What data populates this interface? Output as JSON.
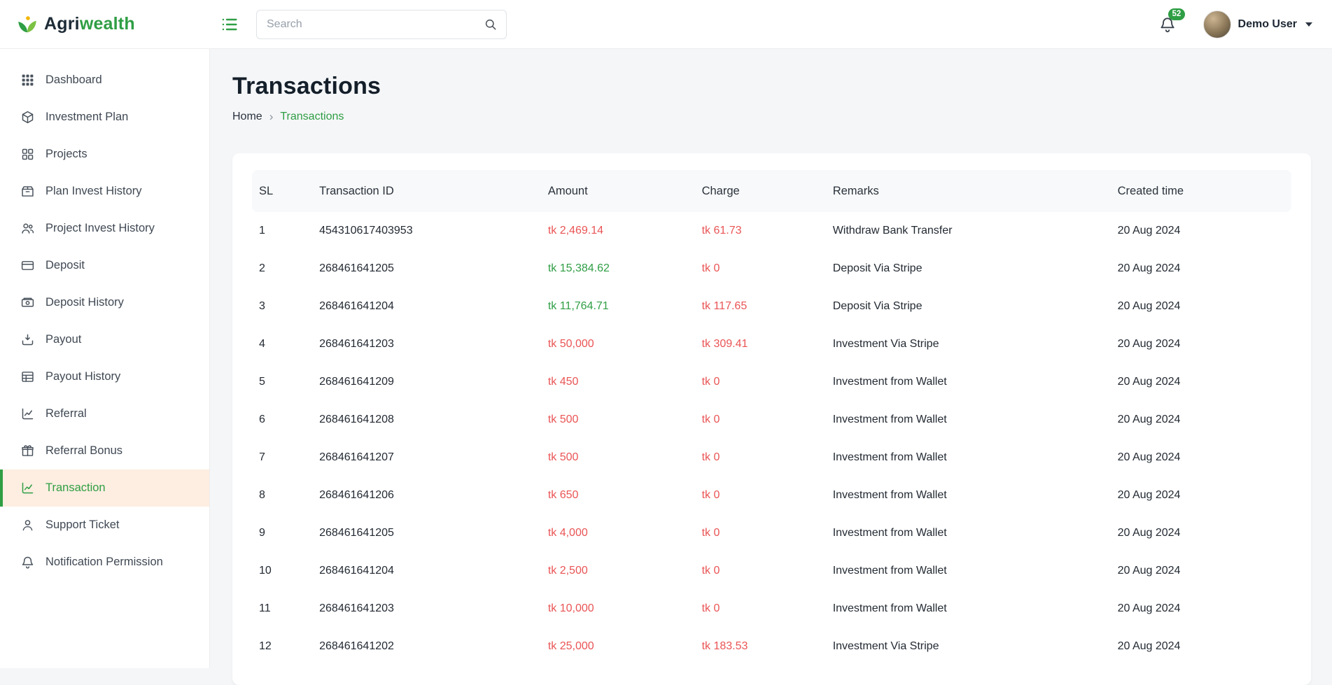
{
  "colors": {
    "accent_green": "#2f9e44",
    "negative_red": "#ea5455",
    "active_item_bg": "#fdeee1"
  },
  "header": {
    "brand": {
      "primary": "Agri",
      "secondary": "wealth"
    },
    "search_placeholder": "Search",
    "notification_count": "52",
    "user_name": "Demo User"
  },
  "sidebar": {
    "items": [
      {
        "label": "Dashboard",
        "icon": "dashboard-grid-icon",
        "active": false
      },
      {
        "label": "Investment Plan",
        "icon": "investment-plan-icon",
        "active": false
      },
      {
        "label": "Projects",
        "icon": "projects-icon",
        "active": false
      },
      {
        "label": "Plan Invest History",
        "icon": "plan-invest-history-icon",
        "active": false
      },
      {
        "label": "Project Invest History",
        "icon": "project-invest-history-icon",
        "active": false
      },
      {
        "label": "Deposit",
        "icon": "deposit-icon",
        "active": false
      },
      {
        "label": "Deposit History",
        "icon": "deposit-history-icon",
        "active": false
      },
      {
        "label": "Payout",
        "icon": "payout-icon",
        "active": false
      },
      {
        "label": "Payout History",
        "icon": "payout-history-icon",
        "active": false
      },
      {
        "label": "Referral",
        "icon": "referral-icon",
        "active": false
      },
      {
        "label": "Referral Bonus",
        "icon": "referral-bonus-icon",
        "active": false
      },
      {
        "label": "Transaction",
        "icon": "transaction-icon",
        "active": true
      },
      {
        "label": "Support Ticket",
        "icon": "support-ticket-icon",
        "active": false
      },
      {
        "label": "Notification Permission",
        "icon": "notification-permission-icon",
        "active": false
      }
    ]
  },
  "page": {
    "title": "Transactions",
    "breadcrumb": {
      "home": "Home",
      "separator": "›",
      "current": "Transactions"
    }
  },
  "table": {
    "columns": [
      "SL",
      "Transaction ID",
      "Amount",
      "Charge",
      "Remarks",
      "Created time"
    ],
    "rows": [
      {
        "sl": "1",
        "transaction_id": "454310617403953",
        "amount": "tk 2,469.14",
        "amount_color": "red",
        "charge": "tk 61.73",
        "charge_color": "red",
        "remarks": "Withdraw Bank Transfer",
        "created_time": "20 Aug 2024"
      },
      {
        "sl": "2",
        "transaction_id": "268461641205",
        "amount": "tk 15,384.62",
        "amount_color": "green",
        "charge": "tk 0",
        "charge_color": "red",
        "remarks": "Deposit Via Stripe",
        "created_time": "20 Aug 2024"
      },
      {
        "sl": "3",
        "transaction_id": "268461641204",
        "amount": "tk 11,764.71",
        "amount_color": "green",
        "charge": "tk 117.65",
        "charge_color": "red",
        "remarks": "Deposit Via Stripe",
        "created_time": "20 Aug 2024"
      },
      {
        "sl": "4",
        "transaction_id": "268461641203",
        "amount": "tk 50,000",
        "amount_color": "red",
        "charge": "tk 309.41",
        "charge_color": "red",
        "remarks": "Investment Via Stripe",
        "created_time": "20 Aug 2024"
      },
      {
        "sl": "5",
        "transaction_id": "268461641209",
        "amount": "tk 450",
        "amount_color": "red",
        "charge": "tk 0",
        "charge_color": "red",
        "remarks": "Investment from Wallet",
        "created_time": "20 Aug 2024"
      },
      {
        "sl": "6",
        "transaction_id": "268461641208",
        "amount": "tk 500",
        "amount_color": "red",
        "charge": "tk 0",
        "charge_color": "red",
        "remarks": "Investment from Wallet",
        "created_time": "20 Aug 2024"
      },
      {
        "sl": "7",
        "transaction_id": "268461641207",
        "amount": "tk 500",
        "amount_color": "red",
        "charge": "tk 0",
        "charge_color": "red",
        "remarks": "Investment from Wallet",
        "created_time": "20 Aug 2024"
      },
      {
        "sl": "8",
        "transaction_id": "268461641206",
        "amount": "tk 650",
        "amount_color": "red",
        "charge": "tk 0",
        "charge_color": "red",
        "remarks": "Investment from Wallet",
        "created_time": "20 Aug 2024"
      },
      {
        "sl": "9",
        "transaction_id": "268461641205",
        "amount": "tk 4,000",
        "amount_color": "red",
        "charge": "tk 0",
        "charge_color": "red",
        "remarks": "Investment from Wallet",
        "created_time": "20 Aug 2024"
      },
      {
        "sl": "10",
        "transaction_id": "268461641204",
        "amount": "tk 2,500",
        "amount_color": "red",
        "charge": "tk 0",
        "charge_color": "red",
        "remarks": "Investment from Wallet",
        "created_time": "20 Aug 2024"
      },
      {
        "sl": "11",
        "transaction_id": "268461641203",
        "amount": "tk 10,000",
        "amount_color": "red",
        "charge": "tk 0",
        "charge_color": "red",
        "remarks": "Investment from Wallet",
        "created_time": "20 Aug 2024"
      },
      {
        "sl": "12",
        "transaction_id": "268461641202",
        "amount": "tk 25,000",
        "amount_color": "red",
        "charge": "tk 183.53",
        "charge_color": "red",
        "remarks": "Investment Via Stripe",
        "created_time": "20 Aug 2024"
      }
    ]
  }
}
